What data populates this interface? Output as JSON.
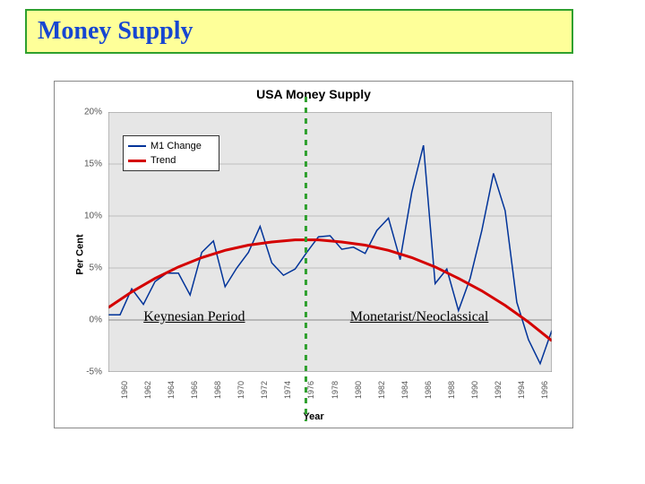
{
  "banner": {
    "text": "Money Supply",
    "bg_color": "#feff99",
    "border_color": "#2fa02e",
    "text_color": "#1746d1"
  },
  "chart": {
    "type": "line",
    "title": "USA Money Supply",
    "title_fontsize": 14,
    "xlabel": "Year",
    "ylabel": "Per Cent",
    "label_fontsize": 11,
    "background_color": "#e6e6e6",
    "plot_bg_color": "#e6e6e6",
    "grid_color": "#bfbfbf",
    "ylim": [
      -5,
      20
    ],
    "ytick_step": 5,
    "yticks": [
      -5,
      0,
      5,
      10,
      15,
      20
    ],
    "ytick_labels": [
      "-5%",
      "0%",
      "5%",
      "10%",
      "15%",
      "20%"
    ],
    "xlim": [
      1959,
      1997
    ],
    "xticks": [
      1960,
      1962,
      1964,
      1966,
      1968,
      1970,
      1972,
      1974,
      1976,
      1978,
      1980,
      1982,
      1984,
      1986,
      1988,
      1990,
      1992,
      1994,
      1996
    ],
    "legend": {
      "position": "upper-left",
      "items": [
        {
          "label": "M1 Change",
          "color": "#003399"
        },
        {
          "label": "Trend",
          "color": "#d40000"
        }
      ]
    },
    "series_m1": {
      "label": "M1 Change",
      "color": "#003399",
      "line_width": 1.5,
      "x": [
        1959,
        1960,
        1961,
        1962,
        1963,
        1964,
        1965,
        1966,
        1967,
        1968,
        1969,
        1970,
        1971,
        1972,
        1973,
        1974,
        1975,
        1976,
        1977,
        1978,
        1979,
        1980,
        1981,
        1982,
        1983,
        1984,
        1985,
        1986,
        1987,
        1988,
        1989,
        1990,
        1991,
        1992,
        1993,
        1994,
        1995,
        1996,
        1997
      ],
      "y": [
        0.5,
        0.5,
        3.0,
        1.5,
        3.7,
        4.5,
        4.5,
        2.4,
        6.5,
        7.6,
        3.2,
        5.0,
        6.5,
        9.0,
        5.5,
        4.3,
        4.9,
        6.5,
        8.0,
        8.1,
        6.8,
        7.0,
        6.4,
        8.6,
        9.8,
        5.8,
        12.3,
        16.8,
        3.5,
        4.9,
        0.9,
        4.0,
        8.6,
        14.1,
        10.5,
        1.7,
        -1.9,
        -4.2,
        -1.0
      ]
    },
    "series_trend": {
      "label": "Trend",
      "color": "#d40000",
      "line_width": 3,
      "x": [
        1959,
        1961,
        1963,
        1965,
        1967,
        1969,
        1971,
        1973,
        1975,
        1977,
        1979,
        1981,
        1983,
        1985,
        1987,
        1989,
        1991,
        1993,
        1995,
        1997
      ],
      "y": [
        1.2,
        2.7,
        4.0,
        5.1,
        6.0,
        6.7,
        7.2,
        7.5,
        7.7,
        7.7,
        7.5,
        7.2,
        6.7,
        6.0,
        5.1,
        4.0,
        2.8,
        1.4,
        -0.2,
        -2.0
      ]
    },
    "divider": {
      "x_year": 1976,
      "color": "#2fa02e",
      "dash": "6,6",
      "line_width": 3
    },
    "annotations": [
      {
        "text": "Keynesian Period",
        "year_center": 1967
      },
      {
        "text": "Monetarist/Neoclassical",
        "year_center": 1987
      }
    ]
  }
}
